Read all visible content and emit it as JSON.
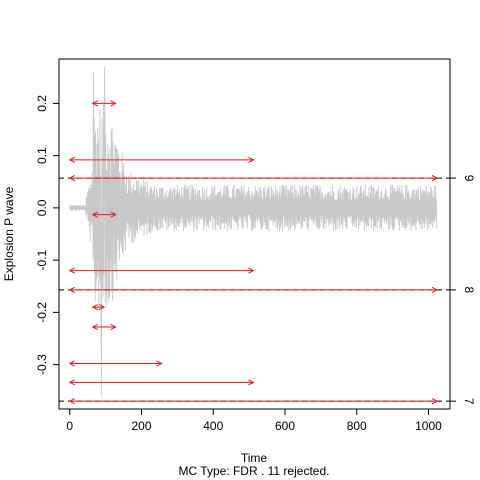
{
  "chart_data": {
    "type": "line",
    "xlabel": "Time",
    "ylabel": "Explosion P wave",
    "subtitle": "MC Type:  FDR .  11  rejected.",
    "xlim": [
      -30,
      1060
    ],
    "ylim": [
      -0.385,
      0.285
    ],
    "x_ticks": [
      0,
      200,
      400,
      600,
      800,
      1000
    ],
    "x_tick_labels": [
      "0",
      "200",
      "400",
      "600",
      "800",
      "1000"
    ],
    "y_ticks": [
      -0.3,
      -0.2,
      -0.1,
      0.0,
      0.1,
      0.2
    ],
    "y_tick_labels": [
      "-0.3",
      "-0.2",
      "-0.1",
      "0.0",
      "0.1",
      "0.2"
    ],
    "right_ticks": [
      0.057,
      -0.157,
      -0.37
    ],
    "right_tick_labels": [
      "9",
      "8",
      "7"
    ],
    "signal": {
      "color": "#c8c8c8",
      "length": 1024
    },
    "level_lines": [
      {
        "y": 0.057,
        "color": "#e41a1c"
      },
      {
        "y": -0.157,
        "color": "#e41a1c"
      },
      {
        "y": -0.37,
        "color": "#e41a1c"
      }
    ],
    "rejected_intervals": [
      {
        "x0": 64,
        "x1": 128,
        "y": 0.2
      },
      {
        "x0": 0,
        "x1": 512,
        "y": 0.092
      },
      {
        "x0": 64,
        "x1": 128,
        "y": -0.013
      },
      {
        "x0": 0,
        "x1": 512,
        "y": -0.12
      },
      {
        "x0": 64,
        "x1": 96,
        "y": -0.19
      },
      {
        "x0": 64,
        "x1": 128,
        "y": -0.228
      },
      {
        "x0": 0,
        "x1": 256,
        "y": -0.298
      },
      {
        "x0": 0,
        "x1": 512,
        "y": -0.334
      },
      {
        "x0": 0,
        "x1": 1024,
        "y": 0.057
      },
      {
        "x0": 0,
        "x1": 1024,
        "y": -0.157
      },
      {
        "x0": 0,
        "x1": 1024,
        "y": -0.37
      }
    ],
    "arrow_color": "#e41a1c"
  }
}
